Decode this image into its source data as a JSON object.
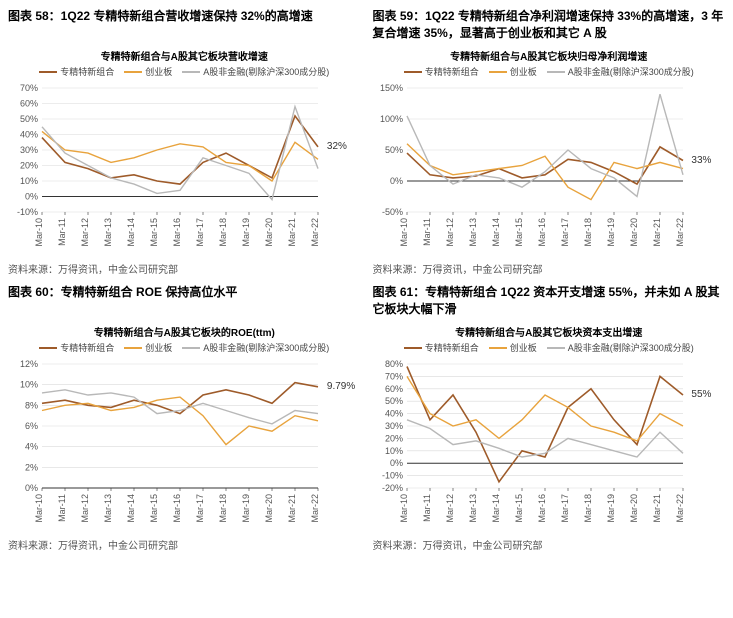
{
  "global": {
    "bg": "#ffffff",
    "grid_color": "#d9d9d9",
    "axis_color": "#333333",
    "tick_font_size": 9,
    "source_text": "资料来源：万得资讯，中金公司研究部",
    "x_categories": [
      "Mar-10",
      "Mar-11",
      "Mar-12",
      "Mar-13",
      "Mar-14",
      "Mar-15",
      "Mar-16",
      "Mar-17",
      "Mar-18",
      "Mar-19",
      "Mar-20",
      "Mar-21",
      "Mar-22"
    ],
    "series_meta": [
      {
        "key": "zjxn",
        "label": "专精特新组合",
        "color": "#9e5b2a",
        "width": 1.6
      },
      {
        "key": "cyb",
        "label": "创业板",
        "color": "#e8a33d",
        "width": 1.4
      },
      {
        "key": "ashare",
        "label": "A股非金融(剔除沪深300成分股)",
        "color": "#b8b8b8",
        "width": 1.4
      }
    ]
  },
  "panels": [
    {
      "id": "p58",
      "title": "图表 58：1Q22 专精特新组合营收增速保持 32%的高增速",
      "chart_title": "专精特新组合与A股其它板块营收增速",
      "y": {
        "min": -10,
        "max": 70,
        "step": 10,
        "fmt": "pct"
      },
      "callout": {
        "text": "32%",
        "x_idx": 12.3,
        "y": 32
      },
      "series": {
        "zjxn": [
          38,
          22,
          18,
          12,
          14,
          10,
          8,
          22,
          28,
          20,
          12,
          52,
          32
        ],
        "cyb": [
          42,
          30,
          28,
          22,
          25,
          30,
          34,
          32,
          22,
          20,
          10,
          35,
          24
        ],
        "ashare": [
          45,
          28,
          20,
          12,
          8,
          2,
          4,
          25,
          20,
          15,
          -2,
          58,
          18
        ]
      }
    },
    {
      "id": "p59",
      "title": "图表 59：1Q22 专精特新组合净利润增速保持 33%的高增速，3 年复合增速 35%，显著高于创业板和其它 A 股",
      "chart_title": "专精特新组合与A股其它板块归母净利润增速",
      "y": {
        "min": -50,
        "max": 150,
        "step": 50,
        "fmt": "pct"
      },
      "callout": {
        "text": "33%",
        "x_idx": 12.3,
        "y": 33
      },
      "series": {
        "zjxn": [
          45,
          10,
          5,
          8,
          20,
          5,
          10,
          35,
          30,
          15,
          -5,
          55,
          33
        ],
        "cyb": [
          60,
          25,
          10,
          15,
          20,
          25,
          40,
          -10,
          -30,
          30,
          20,
          30,
          20
        ],
        "ashare": [
          105,
          25,
          -5,
          10,
          5,
          -10,
          15,
          50,
          20,
          5,
          -25,
          140,
          10
        ]
      }
    },
    {
      "id": "p60",
      "title": "图表 60：专精特新组合 ROE 保持高位水平",
      "chart_title": "专精特新组合与A股其它板块的ROE(ttm)",
      "y": {
        "min": 0,
        "max": 12,
        "step": 2,
        "fmt": "pct"
      },
      "callout": {
        "text": "9.79%",
        "x_idx": 12.3,
        "y": 9.79
      },
      "series": {
        "zjxn": [
          8.2,
          8.5,
          8.0,
          7.8,
          8.5,
          8.0,
          7.2,
          9.0,
          9.5,
          9.0,
          8.2,
          10.2,
          9.79
        ],
        "cyb": [
          7.5,
          8.0,
          8.2,
          7.5,
          7.8,
          8.5,
          8.8,
          7.0,
          4.2,
          6.0,
          5.5,
          7.0,
          6.5
        ],
        "ashare": [
          9.2,
          9.5,
          9.0,
          9.2,
          8.8,
          7.2,
          7.5,
          8.2,
          7.5,
          6.8,
          6.2,
          7.5,
          7.2
        ]
      }
    },
    {
      "id": "p61",
      "title": "图表 61：专精特新组合 1Q22 资本开支增速 55%，并未如 A 股其它板块大幅下滑",
      "chart_title": "专精特新组合与A股其它板块资本支出增速",
      "y": {
        "min": -20,
        "max": 80,
        "step": 10,
        "fmt": "pct"
      },
      "callout": {
        "text": "55%",
        "x_idx": 12.3,
        "y": 55
      },
      "series": {
        "zjxn": [
          78,
          35,
          55,
          25,
          -15,
          10,
          5,
          45,
          60,
          35,
          15,
          70,
          55
        ],
        "cyb": [
          70,
          40,
          30,
          35,
          20,
          35,
          55,
          45,
          30,
          25,
          18,
          40,
          30
        ],
        "ashare": [
          35,
          28,
          15,
          18,
          12,
          5,
          8,
          20,
          15,
          10,
          5,
          25,
          8
        ]
      }
    }
  ]
}
